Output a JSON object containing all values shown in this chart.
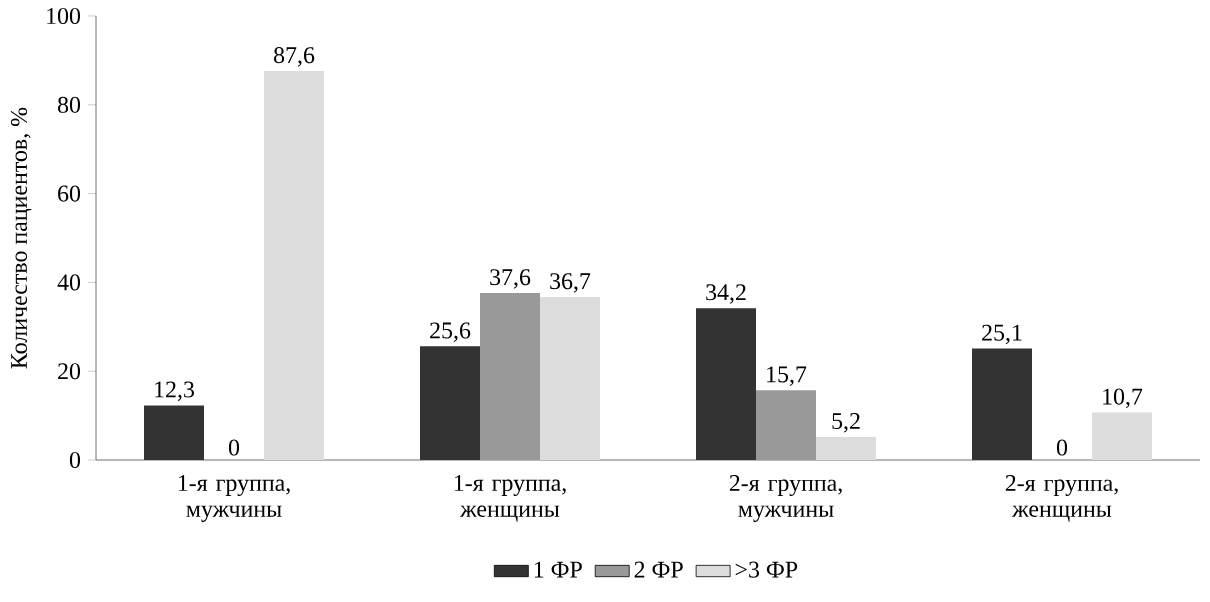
{
  "chart_data": {
    "type": "bar",
    "ylabel": "Количество пациентов, %",
    "categories": [
      "1-я группа, мужчины",
      "1-я группа, женщины",
      "2-я группа, мужчины",
      "2-я группа, женщины"
    ],
    "series": [
      {
        "name": "1 ФР",
        "color": "#333333",
        "values": [
          12.3,
          25.6,
          34.2,
          25.1
        ],
        "value_labels": [
          "12,3",
          "25,6",
          "34,2",
          "25,1"
        ]
      },
      {
        "name": "2 ФР",
        "color": "#999999",
        "values": [
          0,
          37.6,
          15.7,
          0
        ],
        "value_labels": [
          "0",
          "37,6",
          "15,7",
          "0"
        ]
      },
      {
        "name": ">3 ФР",
        "color": "#dcdcdc",
        "values": [
          87.6,
          36.7,
          5.2,
          10.7
        ],
        "value_labels": [
          "87,6",
          "36,7",
          "5,2",
          "10,7"
        ]
      }
    ],
    "ylim": [
      0,
      100
    ],
    "yticks": [
      0,
      20,
      40,
      60,
      80,
      100
    ],
    "grid": false,
    "legend": "bottom"
  }
}
